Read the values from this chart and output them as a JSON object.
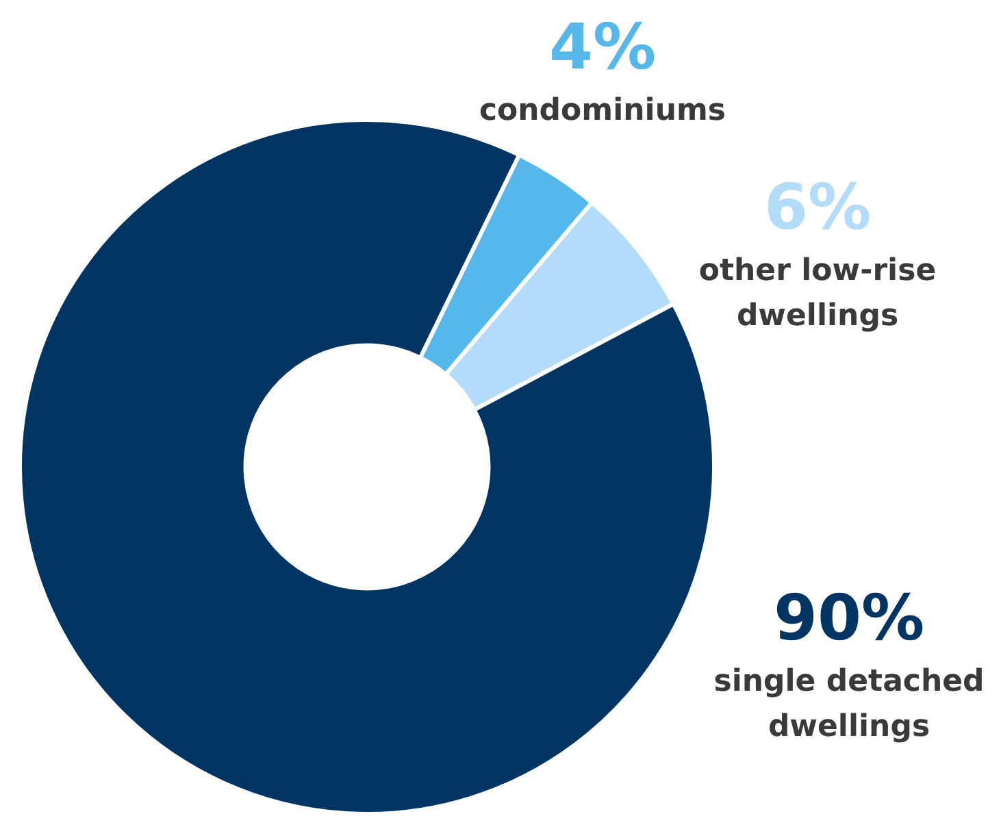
{
  "chart_data": {
    "type": "donut",
    "categories": [
      "condominiums",
      "other low-rise dwellings",
      "single detached dwellings"
    ],
    "values": [
      4,
      6,
      90
    ],
    "colors": [
      "#56b8ea",
      "#b3dcfb",
      "#003462"
    ],
    "value_labels": [
      "4%",
      "6%",
      "90%"
    ],
    "legend": false
  }
}
